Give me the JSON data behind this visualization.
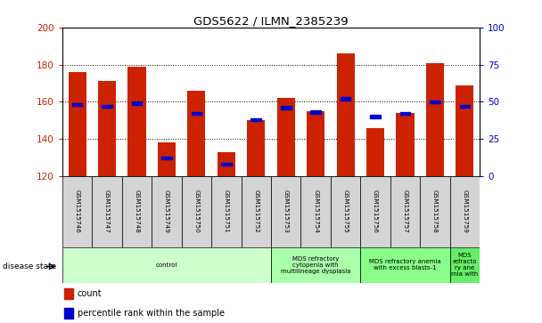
{
  "title": "GDS5622 / ILMN_2385239",
  "samples": [
    "GSM1515746",
    "GSM1515747",
    "GSM1515748",
    "GSM1515749",
    "GSM1515750",
    "GSM1515751",
    "GSM1515752",
    "GSM1515753",
    "GSM1515754",
    "GSM1515755",
    "GSM1515756",
    "GSM1515757",
    "GSM1515758",
    "GSM1515759"
  ],
  "counts": [
    176,
    171,
    179,
    138,
    166,
    133,
    150,
    162,
    155,
    186,
    146,
    154,
    181,
    169
  ],
  "percentile_ranks": [
    48,
    47,
    49,
    12,
    42,
    8,
    38,
    46,
    43,
    52,
    40,
    42,
    50,
    47
  ],
  "ylim_left": [
    120,
    200
  ],
  "ylim_right": [
    0,
    100
  ],
  "yticks_left": [
    120,
    140,
    160,
    180,
    200
  ],
  "yticks_right": [
    0,
    25,
    50,
    75,
    100
  ],
  "bar_color": "#CC2200",
  "dot_color": "#0000CC",
  "grid_color": "#000000",
  "disease_groups": [
    {
      "label": "control",
      "start": 0,
      "end": 7,
      "color": "#CCFFCC"
    },
    {
      "label": "MDS refractory\ncytopenia with\nmultilineage dysplasia",
      "start": 7,
      "end": 10,
      "color": "#AAFFAA"
    },
    {
      "label": "MDS refractory anemia\nwith excess blasts-1",
      "start": 10,
      "end": 13,
      "color": "#88FF88"
    },
    {
      "label": "MDS\nrefracto\nry ane\nmia with",
      "start": 13,
      "end": 14,
      "color": "#66EE66"
    }
  ],
  "xlabel_disease": "disease state",
  "legend_count": "count",
  "legend_percentile": "percentile rank within the sample",
  "background_color": "#FFFFFF",
  "sample_bg_color": "#D4D4D4"
}
